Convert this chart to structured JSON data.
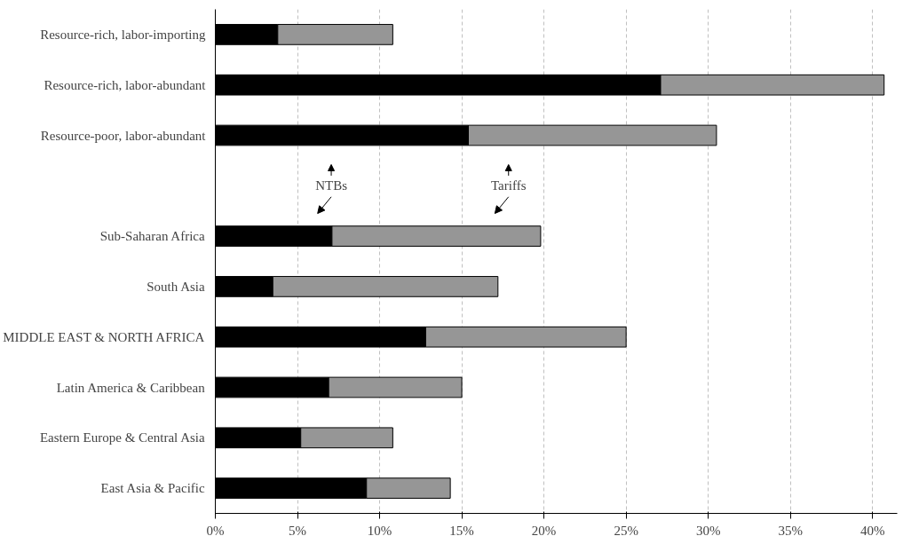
{
  "chart_data": {
    "type": "bar",
    "orientation": "horizontal",
    "stacked": true,
    "categories": [
      "Resource-rich, labor-importing",
      "Resource-rich, labor-abundant",
      "Resource-poor, labor-abundant",
      null,
      "Sub-Saharan Africa",
      "South Asia",
      "MIDDLE EAST & NORTH AFRICA",
      "Latin America & Caribbean",
      "Eastern Europe & Central Asia",
      "East Asia & Pacific"
    ],
    "series": [
      {
        "name": "NTBs",
        "color": "#000000",
        "values": [
          3.8,
          27.1,
          15.4,
          null,
          7.1,
          3.5,
          12.8,
          6.9,
          5.2,
          9.2
        ]
      },
      {
        "name": "Tariffs",
        "color": "#969696",
        "values": [
          7.0,
          13.6,
          15.1,
          null,
          12.7,
          13.7,
          12.2,
          8.1,
          5.6,
          5.1
        ]
      }
    ],
    "xlim": [
      0,
      41.5
    ],
    "xticks": [
      {
        "value": 0,
        "label": "0%"
      },
      {
        "value": 5,
        "label": "5%"
      },
      {
        "value": 10,
        "label": "10%"
      },
      {
        "value": 15,
        "label": "15%"
      },
      {
        "value": 20,
        "label": "20%"
      },
      {
        "value": 25,
        "label": "25%"
      },
      {
        "value": 30,
        "label": "30%"
      },
      {
        "value": 35,
        "label": "35%"
      },
      {
        "value": 40,
        "label": "40%"
      }
    ],
    "grid": "x",
    "legend": "center left"
  }
}
